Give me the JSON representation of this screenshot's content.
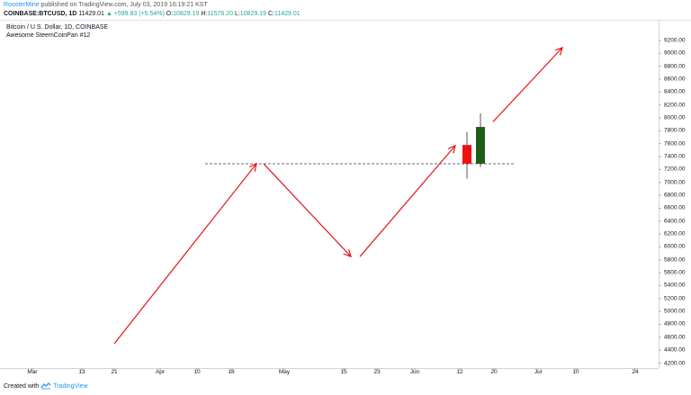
{
  "publication": {
    "author": "RoosterMine",
    "text": " published on TradingView.com, July 03, 2019 16:19:21 KST"
  },
  "ohlc": {
    "symbol_interval": "COINBASE:BTCUSD, 1D",
    "last": "11429.01",
    "change": "▲ +599.83 (+5.54%)",
    "o_label": "O:",
    "o": "10829.19",
    "h_label": "H:",
    "h": "11576.20",
    "l_label": "L:",
    "l": "10829.19",
    "c_label": "C:",
    "c": "11429.01"
  },
  "chart_title": "Bitcoin / U.S. Dollar, 1D, COINBASE",
  "indicator_label": "Awesome SteemCoinPan #12",
  "footer": {
    "created_with": "Created with",
    "brand": "TradingView"
  },
  "colors": {
    "arrow": "#e3141b",
    "candle_up": "#1e5c17",
    "candle_down": "#f01010",
    "accent": "#2196f3",
    "up_text": "#26a69a"
  },
  "chart_data": {
    "type": "candlestick",
    "price_ticks": [
      "9200.00",
      "9000.00",
      "8800.00",
      "8600.00",
      "8400.00",
      "8200.00",
      "8000.00",
      "7800.00",
      "7600.00",
      "7400.00",
      "7200.00",
      "7000.00",
      "6800.00",
      "6600.00",
      "6400.00",
      "6200.00",
      "6000.00",
      "5800.00",
      "5600.00",
      "5400.00",
      "5200.00",
      "5000.00",
      "4800.00",
      "4600.00",
      "4400.00",
      "4200.00"
    ],
    "time_ticks": [
      "Mar",
      "13",
      "21",
      "Apr",
      "10",
      "18",
      "May",
      "15",
      "23",
      "Jun",
      "12",
      "20",
      "Jul",
      "10",
      "24"
    ],
    "candles": [
      {
        "open": 7580,
        "high": 7780,
        "low": 7060,
        "close": 7290,
        "direction": "down"
      },
      {
        "open": 7290,
        "high": 8070,
        "low": 7240,
        "close": 7860,
        "direction": "up"
      }
    ],
    "horizontal_level": 7290,
    "arrows": [
      {
        "from_price": 4500,
        "to_price": 7290
      },
      {
        "from_price": 7290,
        "to_price": 5850
      },
      {
        "from_price": 5850,
        "to_price": 7570
      },
      {
        "from_price": 7940,
        "to_price": 9090
      }
    ]
  }
}
